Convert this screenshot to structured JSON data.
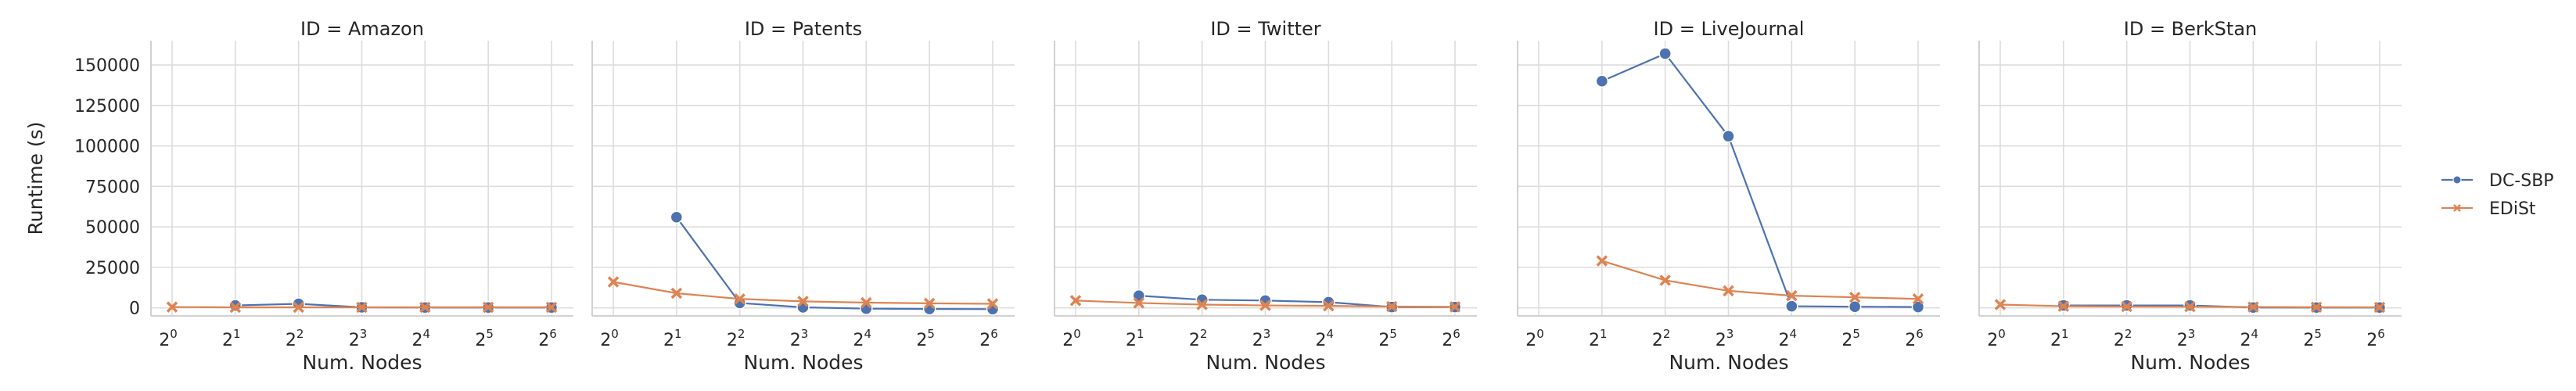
{
  "chart_data": {
    "type": "line",
    "facet_titles": [
      "ID = Amazon",
      "ID = Patents",
      "ID = Twitter",
      "ID = LiveJournal",
      "ID = BerkStan"
    ],
    "xlabel": "Num. Nodes",
    "ylabel": "Runtime (s)",
    "x": [
      1,
      2,
      4,
      8,
      16,
      32,
      64
    ],
    "x_tick_base": "2",
    "x_tick_exponents": [
      "0",
      "1",
      "2",
      "3",
      "4",
      "5",
      "6"
    ],
    "ylim": [
      -5000,
      165000
    ],
    "y_ticks": [
      0,
      25000,
      50000,
      75000,
      100000,
      125000,
      150000
    ],
    "y_tick_labels": [
      "0",
      "25000",
      "50000",
      "75000",
      "100000",
      "125000",
      "150000"
    ],
    "grid": true,
    "legend_position": "right",
    "series": [
      {
        "name": "DC-SBP",
        "color": "#4c72b0",
        "marker": "circle",
        "values": [
          [
            null,
            1500,
            2500,
            300,
            200,
            200,
            200
          ],
          [
            null,
            56000,
            3000,
            300,
            -500,
            -700,
            -800
          ],
          [
            null,
            7500,
            5000,
            4500,
            3500,
            500,
            500
          ],
          [
            null,
            140000,
            157000,
            106000,
            1000,
            700,
            500
          ],
          [
            null,
            1500,
            1500,
            1500,
            200,
            200,
            200
          ]
        ]
      },
      {
        "name": "EDiSt",
        "color": "#dd8452",
        "marker": "x",
        "values": [
          [
            500,
            300,
            300,
            300,
            300,
            300,
            300
          ],
          [
            16000,
            9000,
            5500,
            4000,
            3200,
            2800,
            2500
          ],
          [
            4500,
            3000,
            2000,
            1500,
            1200,
            800,
            600
          ],
          [
            null,
            29000,
            17000,
            10500,
            7500,
            6500,
            5500
          ],
          [
            2000,
            1000,
            800,
            700,
            500,
            400,
            300
          ]
        ]
      }
    ]
  }
}
